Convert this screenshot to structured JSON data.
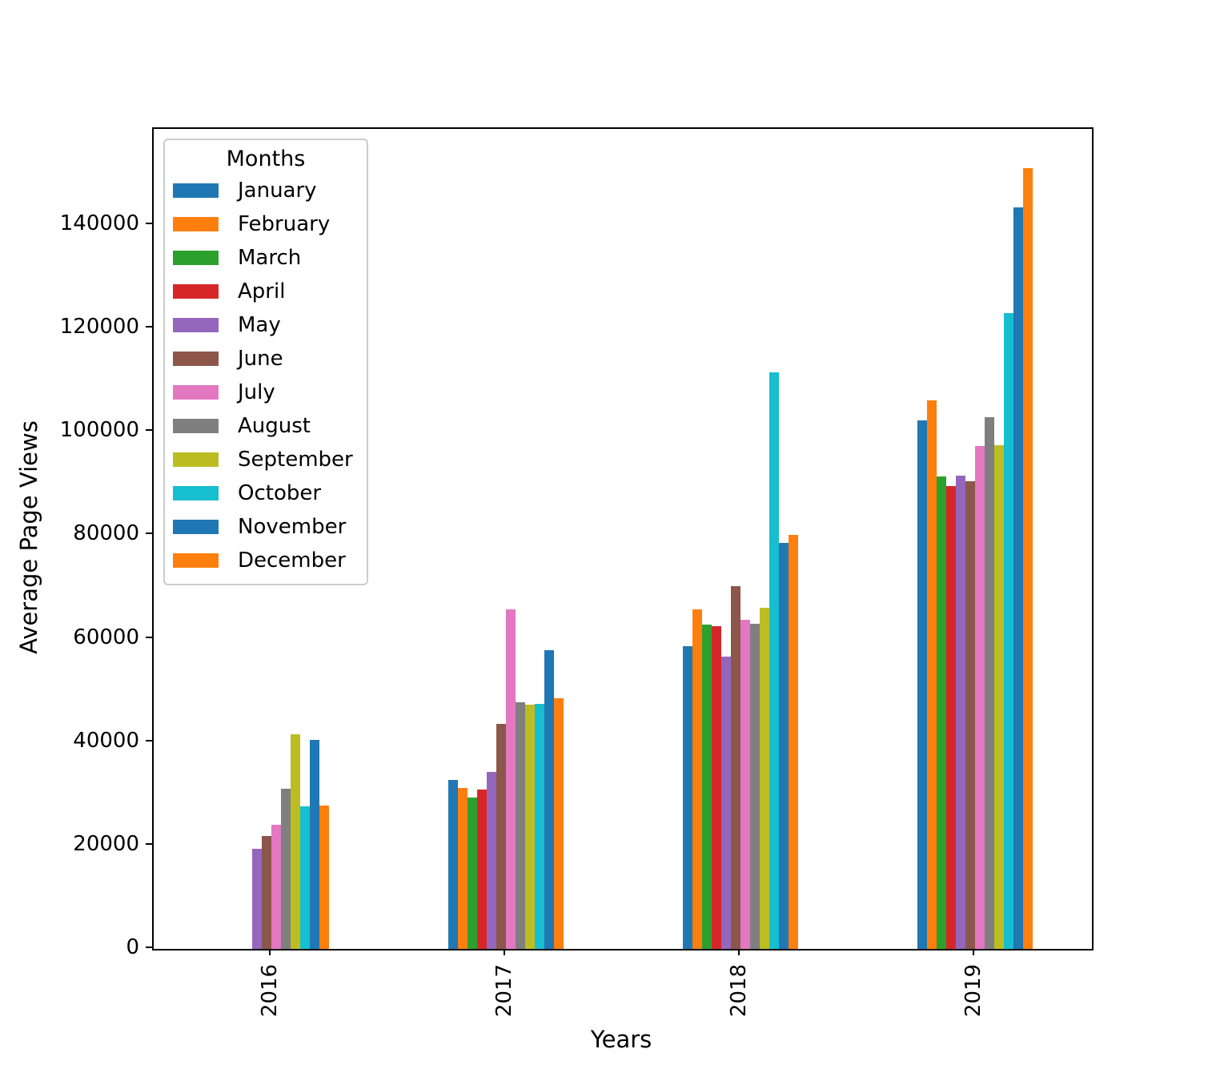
{
  "chart_data": {
    "type": "bar",
    "title": "",
    "xlabel": "Years",
    "ylabel": "Average Page Views",
    "legend_title": "Months",
    "legend_position": "upper left",
    "grid": false,
    "categories": [
      "2016",
      "2017",
      "2018",
      "2019"
    ],
    "yticks": [
      0,
      20000,
      40000,
      60000,
      80000,
      100000,
      120000,
      140000
    ],
    "ylim": [
      0,
      158600
    ],
    "series": [
      {
        "name": "January",
        "color": "#1f77b4",
        "values": [
          0,
          32700,
          58500,
          102300
        ]
      },
      {
        "name": "February",
        "color": "#ff7f0e",
        "values": [
          0,
          31200,
          65700,
          106100
        ]
      },
      {
        "name": "March",
        "color": "#2ca02c",
        "values": [
          0,
          29300,
          62800,
          91400
        ]
      },
      {
        "name": "April",
        "color": "#d62728",
        "values": [
          0,
          30800,
          62400,
          89500
        ]
      },
      {
        "name": "May",
        "color": "#9467bd",
        "values": [
          19400,
          34200,
          56600,
          91500
        ]
      },
      {
        "name": "June",
        "color": "#8c564b",
        "values": [
          21800,
          43500,
          70200,
          90400
        ]
      },
      {
        "name": "July",
        "color": "#e377c2",
        "values": [
          24000,
          65700,
          63600,
          97300
        ]
      },
      {
        "name": "August",
        "color": "#7f7f7f",
        "values": [
          31000,
          47700,
          62900,
          102800
        ]
      },
      {
        "name": "September",
        "color": "#bcbd22",
        "values": [
          41500,
          47300,
          66000,
          97400
        ]
      },
      {
        "name": "October",
        "color": "#17becf",
        "values": [
          27500,
          47400,
          111500,
          123000
        ]
      },
      {
        "name": "November",
        "color": "#1f77b4",
        "values": [
          40400,
          57800,
          78600,
          143500
        ]
      },
      {
        "name": "December",
        "color": "#ff7f0e",
        "values": [
          27700,
          48500,
          80000,
          151000
        ]
      }
    ]
  }
}
